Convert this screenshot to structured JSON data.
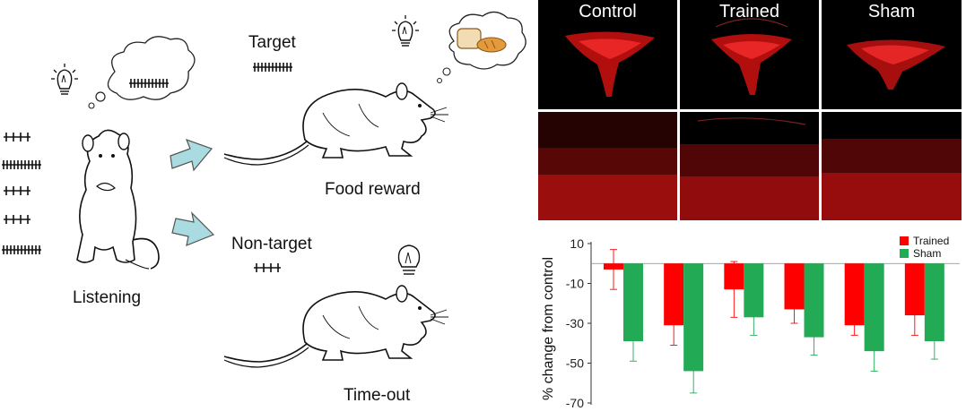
{
  "diagram": {
    "left_labels": {
      "listening": "Listening",
      "target": "Target",
      "food_reward": "Food reward",
      "non_target": "Non-target",
      "time_out": "Time-out"
    },
    "micrograph_columns": [
      "Control",
      "Trained",
      "Sham"
    ],
    "colors": {
      "stain": "#e01010",
      "arrow": "#a9dbe0"
    }
  },
  "chart_data": {
    "type": "bar",
    "categories": [
      "",
      "",
      "",
      "",
      "",
      ""
    ],
    "series": [
      {
        "name": "Trained",
        "color": "#ff0000",
        "values": [
          -3,
          -31,
          -13,
          -23,
          -31,
          -26
        ],
        "errors": [
          10,
          10,
          14,
          7,
          5,
          10
        ]
      },
      {
        "name": "Sham",
        "color": "#22aa55",
        "values": [
          -39,
          -54,
          -27,
          -37,
          -44,
          -39
        ],
        "errors": [
          10,
          11,
          9,
          9,
          10,
          9
        ]
      }
    ],
    "ylabel": "% change from control",
    "yticks": [
      10,
      -10,
      -30,
      -50,
      -70
    ],
    "ylim": [
      -70,
      10
    ],
    "legend_position": "top-right",
    "grid": false
  }
}
